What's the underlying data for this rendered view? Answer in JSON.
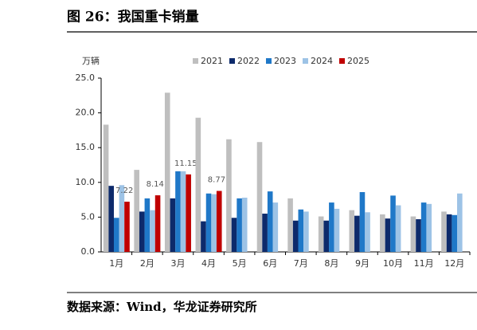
{
  "chart_data": {
    "type": "bar",
    "title": "图 26：我国重卡销量",
    "y_label": "万辆",
    "source": "数据来源：Wind，华龙证券研究所",
    "categories": [
      "1月",
      "2月",
      "3月",
      "4月",
      "5月",
      "6月",
      "7月",
      "8月",
      "9月",
      "10月",
      "11月",
      "12月"
    ],
    "series": [
      {
        "name": "2021",
        "color": "#bfbfbf",
        "values": [
          18.3,
          11.8,
          22.9,
          19.3,
          16.2,
          15.8,
          7.7,
          5.1,
          6.0,
          5.4,
          5.1,
          5.8
        ]
      },
      {
        "name": "2022",
        "color": "#0d2a6b",
        "values": [
          9.5,
          5.8,
          7.7,
          4.4,
          4.9,
          5.5,
          4.5,
          4.5,
          5.2,
          4.8,
          4.7,
          5.4
        ]
      },
      {
        "name": "2023",
        "color": "#1f78c8",
        "values": [
          4.9,
          7.7,
          11.6,
          8.4,
          7.7,
          8.7,
          6.1,
          7.1,
          8.6,
          8.1,
          7.1,
          5.3
        ]
      },
      {
        "name": "2024",
        "color": "#9dc3e6",
        "values": [
          9.6,
          6.0,
          11.6,
          8.3,
          7.8,
          7.1,
          5.8,
          6.2,
          5.7,
          6.7,
          6.9,
          8.4
        ]
      },
      {
        "name": "2025",
        "color": "#c00000",
        "values": [
          7.22,
          8.14,
          11.15,
          8.77,
          null,
          null,
          null,
          null,
          null,
          null,
          null,
          null
        ],
        "show_labels": true
      }
    ],
    "ylim": [
      0,
      25
    ],
    "yticks": [
      {
        "value": 0,
        "label": "0.0"
      },
      {
        "value": 5,
        "label": "5.0"
      },
      {
        "value": 10,
        "label": "10.0"
      },
      {
        "value": 15,
        "label": "15.0"
      },
      {
        "value": 20,
        "label": "20.0"
      },
      {
        "value": 25,
        "label": "25.0"
      }
    ],
    "legend": "top"
  }
}
